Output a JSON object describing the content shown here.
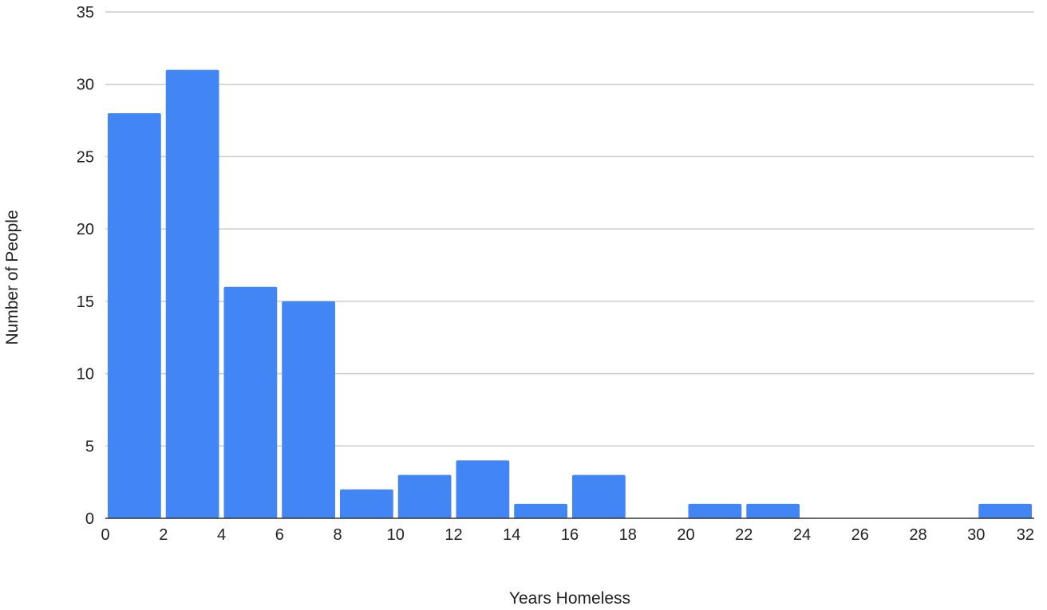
{
  "chart_data": {
    "type": "bar",
    "title": "",
    "xlabel": "Years Homeless",
    "ylabel": "Number of People",
    "bin_edges": [
      0,
      2,
      4,
      6,
      8,
      10,
      12,
      14,
      16,
      18,
      20,
      22,
      24,
      26,
      28,
      30,
      32
    ],
    "values": [
      28,
      31,
      16,
      15,
      2,
      3,
      4,
      1,
      3,
      0,
      1,
      1,
      0,
      0,
      0,
      1
    ],
    "xlim": [
      0,
      32
    ],
    "ylim": [
      0,
      35
    ],
    "x_ticks": [
      "0",
      "2",
      "4",
      "6",
      "8",
      "10",
      "12",
      "14",
      "16",
      "18",
      "20",
      "22",
      "24",
      "26",
      "28",
      "30",
      "32"
    ],
    "y_ticks": [
      "0",
      "5",
      "10",
      "15",
      "20",
      "25",
      "30",
      "35"
    ],
    "grid": "horizontal",
    "legend": "none",
    "bar_color": "#4285f4",
    "grid_color": "#cccccc",
    "axis_color": "#333333"
  }
}
